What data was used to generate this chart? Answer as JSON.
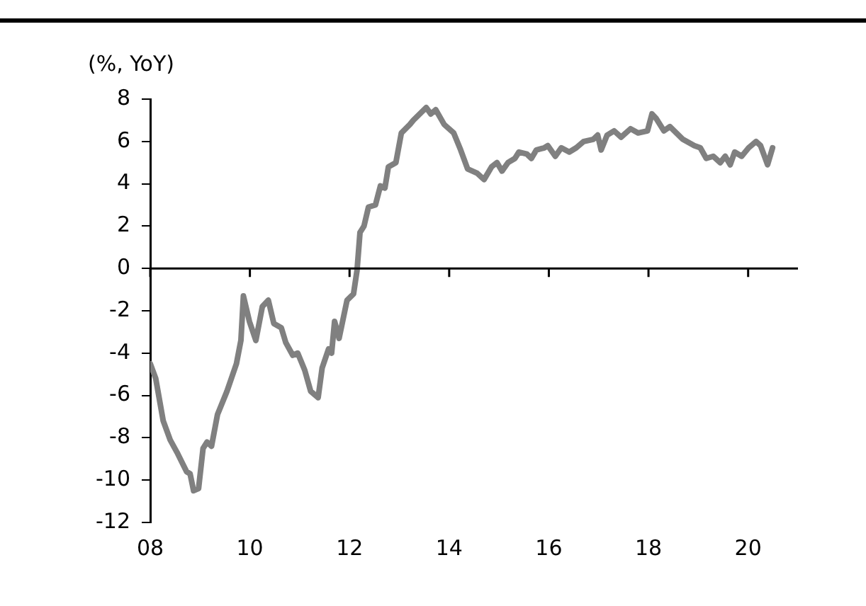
{
  "chart_data": {
    "type": "line",
    "ylabel": "(%, YoY)",
    "xlim": [
      2008,
      2021
    ],
    "xticks": [
      {
        "value": 2008,
        "label": "08"
      },
      {
        "value": 2010,
        "label": "10"
      },
      {
        "value": 2012,
        "label": "12"
      },
      {
        "value": 2014,
        "label": "14"
      },
      {
        "value": 2016,
        "label": "16"
      },
      {
        "value": 2018,
        "label": "18"
      },
      {
        "value": 2020,
        "label": "20"
      }
    ],
    "ylim": [
      -12,
      8
    ],
    "yticks": [
      -12,
      -10,
      -8,
      -6,
      -4,
      -2,
      0,
      2,
      4,
      6,
      8
    ],
    "series": [
      {
        "color": "#808080",
        "x": [
          2008.0,
          2008.11,
          2008.26,
          2008.4,
          2008.54,
          2008.73,
          2008.8,
          2008.87,
          2008.97,
          2009.06,
          2009.14,
          2009.23,
          2009.35,
          2009.54,
          2009.73,
          2009.82,
          2009.87,
          2009.99,
          2010.12,
          2010.25,
          2010.37,
          2010.48,
          2010.63,
          2010.72,
          2010.86,
          2010.96,
          2011.1,
          2011.22,
          2011.37,
          2011.45,
          2011.58,
          2011.64,
          2011.7,
          2011.79,
          2011.95,
          2012.08,
          2012.15,
          2012.21,
          2012.29,
          2012.38,
          2012.52,
          2012.62,
          2012.71,
          2012.78,
          2012.93,
          2013.04,
          2013.21,
          2013.28,
          2013.54,
          2013.63,
          2013.73,
          2013.9,
          2014.09,
          2014.23,
          2014.37,
          2014.56,
          2014.7,
          2014.85,
          2014.96,
          2015.06,
          2015.18,
          2015.32,
          2015.4,
          2015.56,
          2015.65,
          2015.75,
          2015.91,
          2015.98,
          2016.13,
          2016.25,
          2016.41,
          2016.55,
          2016.7,
          2016.89,
          2016.98,
          2017.05,
          2017.17,
          2017.31,
          2017.45,
          2017.64,
          2017.79,
          2017.98,
          2018.07,
          2018.15,
          2018.31,
          2018.43,
          2018.69,
          2018.92,
          2019.04,
          2019.16,
          2019.3,
          2019.44,
          2019.54,
          2019.64,
          2019.73,
          2019.87,
          2020.01,
          2020.16,
          2020.25,
          2020.39,
          2020.49
        ],
        "values": [
          -4.5,
          -5.2,
          -7.2,
          -8.1,
          -8.7,
          -9.6,
          -9.7,
          -10.5,
          -10.4,
          -8.5,
          -8.2,
          -8.4,
          -6.9,
          -5.8,
          -4.5,
          -3.4,
          -1.3,
          -2.5,
          -3.4,
          -1.8,
          -1.5,
          -2.6,
          -2.8,
          -3.5,
          -4.1,
          -4.0,
          -4.8,
          -5.8,
          -6.1,
          -4.7,
          -3.8,
          -4.0,
          -2.5,
          -3.3,
          -1.5,
          -1.2,
          -0.1,
          1.7,
          2.0,
          2.9,
          3.0,
          3.9,
          3.8,
          4.8,
          5.0,
          6.4,
          6.8,
          7.0,
          7.6,
          7.3,
          7.5,
          6.8,
          6.4,
          5.6,
          4.7,
          4.5,
          4.2,
          4.8,
          5.0,
          4.6,
          5.0,
          5.2,
          5.5,
          5.4,
          5.2,
          5.6,
          5.7,
          5.8,
          5.3,
          5.7,
          5.5,
          5.7,
          6.0,
          6.1,
          6.3,
          5.6,
          6.3,
          6.5,
          6.2,
          6.6,
          6.4,
          6.5,
          7.3,
          7.1,
          6.5,
          6.7,
          6.1,
          5.8,
          5.7,
          5.2,
          5.3,
          5.0,
          5.3,
          4.9,
          5.5,
          5.3,
          5.7,
          6.0,
          5.8,
          4.9,
          5.7
        ]
      }
    ]
  }
}
